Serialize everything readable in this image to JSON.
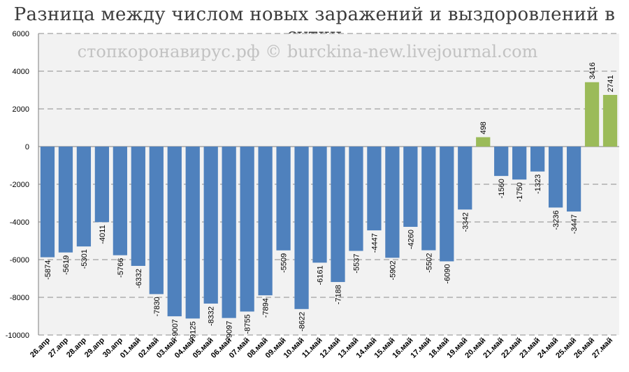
{
  "chart_data": {
    "type": "bar",
    "title": "Разница между числом новых заражений и выздоровлений в сутки",
    "watermark": "стопкоронавирус.рф © burckina-new.livejournal.com",
    "categories": [
      "26.апр",
      "27.апр",
      "28.апр",
      "29.апр",
      "30.апр",
      "01.май",
      "02.май",
      "03.май",
      "04.май",
      "05.май",
      "06.май",
      "07.май",
      "08.май",
      "09.май",
      "10.май",
      "11.май",
      "12.май",
      "13.май",
      "14.май",
      "15.май",
      "16.май",
      "17.май",
      "18.май",
      "19.май",
      "20.май",
      "21.май",
      "22.май",
      "23.май",
      "24.май",
      "25.май",
      "26.май",
      "27.май"
    ],
    "values": [
      -5874,
      -5619,
      -5301,
      -4011,
      -5766,
      -6332,
      -7830,
      -9007,
      -9125,
      -8332,
      -9097,
      -8755,
      -7894,
      -5509,
      -8622,
      -6161,
      -7188,
      -5537,
      -4447,
      -5902,
      -4260,
      -5502,
      -6090,
      -3342,
      498,
      -1560,
      -1750,
      -1323,
      -3236,
      -3447,
      3416,
      2741
    ],
    "ylim": [
      -10000,
      6000
    ],
    "yticks": [
      -10000,
      -8000,
      -6000,
      -4000,
      -2000,
      0,
      2000,
      4000,
      6000
    ],
    "grid": true,
    "legend": "none",
    "colors": {
      "negative": "#4f81bd",
      "positive": "#9bbb59",
      "plot_bg": "#f2f2f2",
      "grid": "#8c8c8c"
    }
  }
}
